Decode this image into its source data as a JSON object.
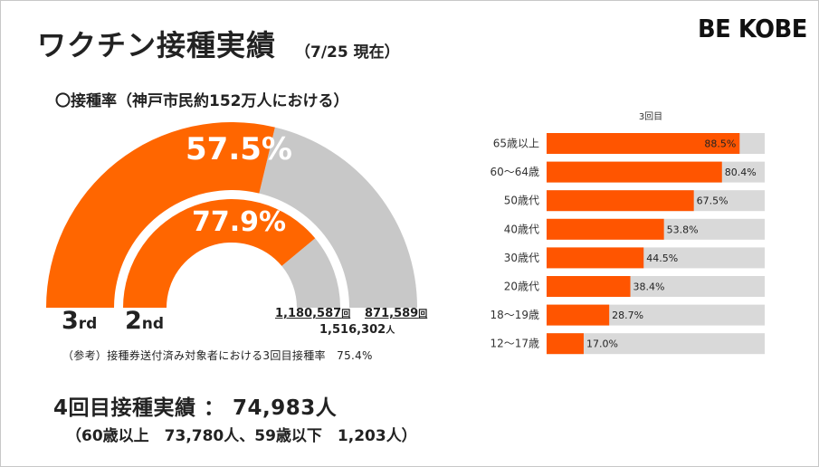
{
  "header": {
    "title": "ワクチン接種実績",
    "date": "（7/25 現在）",
    "logo": "BE KOBE"
  },
  "subheading": "〇接種率（神戸市民約152万人における）",
  "colors": {
    "orange": "#FF6600",
    "gray": "#C8C8C8",
    "bar_orange": "#FF5500",
    "bar_track": "#D9D9D9"
  },
  "gauge": {
    "outer_ring": {
      "label": "3",
      "label_suffix": "rd",
      "pct_text": "57.5%"
    },
    "inner_ring": {
      "label": "2",
      "label_suffix": "nd",
      "pct_text": "77.9%"
    },
    "counts": {
      "third_dose": "1,180,587",
      "third_unit": "回",
      "gap": "871,589",
      "gap_unit": "回",
      "total": "1,516,302",
      "total_unit": "人"
    }
  },
  "note": "（参考）接種券送付済み対象者における3回目接種率　75.4%",
  "fourth_dose": {
    "headline": "4回目接種実績 ： 74,983人",
    "breakdown": "（60歳以上　73,780人、59歳以下　1,203人）"
  },
  "chart_data": [
    {
      "type": "pie",
      "categories": [
        "3rd",
        "2nd"
      ],
      "values": [
        57.5,
        77.9
      ],
      "labels": [
        "57.5%",
        "77.9%"
      ],
      "xlabel": "",
      "ylabel": ""
    },
    {
      "type": "bar",
      "orientation": "horizontal",
      "categories": [
        "65歳以上",
        "60～64歳",
        "50歳代",
        "40歳代",
        "30歳代",
        "20歳代",
        "18～19歳",
        "12～17歳"
      ],
      "series": [
        {
          "name": "3回目",
          "values": [
            88.5,
            80.4,
            67.5,
            53.8,
            44.5,
            38.4,
            28.7,
            17.0
          ]
        }
      ],
      "labels": [
        "88.5%",
        "80.4%",
        "67.5%",
        "53.8%",
        "44.5%",
        "38.4%",
        "28.7%",
        "17.0%"
      ],
      "xlim": [
        0,
        100
      ],
      "xlabel": "",
      "ylabel": "",
      "grid": false
    }
  ]
}
